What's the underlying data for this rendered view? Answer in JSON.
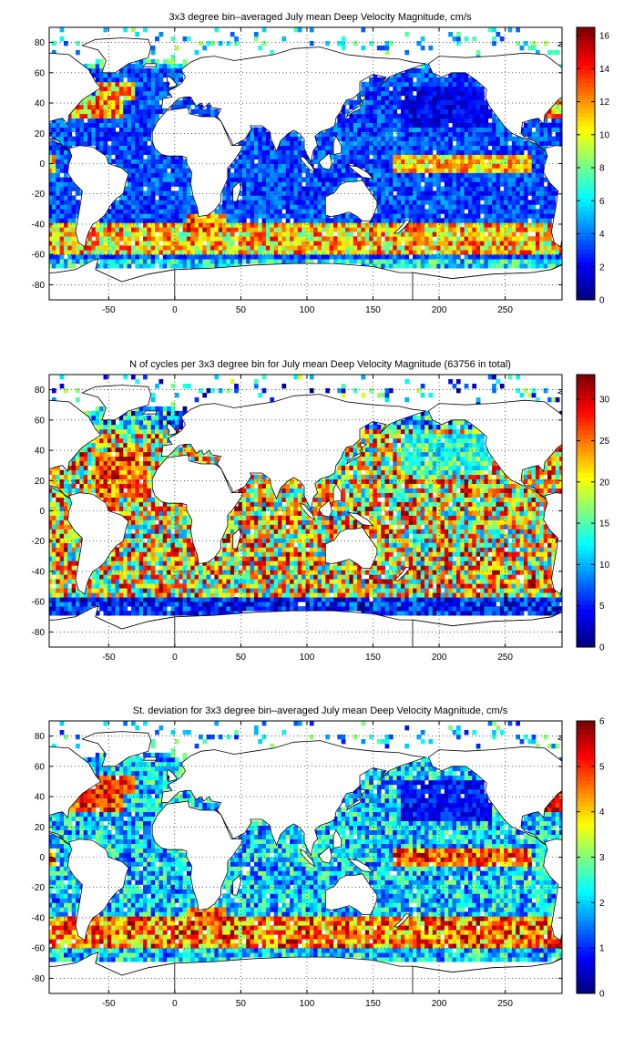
{
  "chart_data": [
    {
      "type": "heatmap",
      "title": "3x3 degree bin–averaged July mean Deep Velocity Magnitude, cm/s",
      "xlim": [
        -95,
        293
      ],
      "ylim": [
        -90,
        90
      ],
      "xticks": [
        "-50",
        "0",
        "50",
        "100",
        "150",
        "200",
        "250"
      ],
      "xtick_values": [
        -50,
        0,
        50,
        100,
        150,
        200,
        250
      ],
      "yticks": [
        "80",
        "60",
        "40",
        "20",
        "0",
        "-20",
        "-40",
        "-60",
        "-80"
      ],
      "ytick_values": [
        80,
        60,
        40,
        20,
        0,
        -20,
        -40,
        -60,
        -80
      ],
      "colorbar_ticks": [
        "16",
        "14",
        "12",
        "10",
        "8",
        "6",
        "4",
        "2",
        "0"
      ],
      "colorbar_tick_values": [
        16,
        14,
        12,
        10,
        8,
        6,
        4,
        2,
        0
      ],
      "color_range": [
        0,
        16.5
      ],
      "colormap": "jet",
      "grid": true,
      "field": "speed",
      "bin_size_deg": 3
    },
    {
      "type": "heatmap",
      "title": "N of cycles per 3x3 degree bin for July mean Deep Velocity Magnitude (63756 in total)",
      "xlim": [
        -95,
        293
      ],
      "ylim": [
        -90,
        90
      ],
      "xticks": [
        "-50",
        "0",
        "50",
        "100",
        "150",
        "200",
        "250"
      ],
      "xtick_values": [
        -50,
        0,
        50,
        100,
        150,
        200,
        250
      ],
      "yticks": [
        "80",
        "60",
        "40",
        "20",
        "0",
        "-20",
        "-40",
        "-60",
        "-80"
      ],
      "ytick_values": [
        80,
        60,
        40,
        20,
        0,
        -20,
        -40,
        -60,
        -80
      ],
      "colorbar_ticks": [
        "30",
        "25",
        "20",
        "15",
        "10",
        "5",
        "0"
      ],
      "colorbar_tick_values": [
        30,
        25,
        20,
        15,
        10,
        5,
        0
      ],
      "color_range": [
        0,
        33
      ],
      "colormap": "jet",
      "grid": true,
      "field": "count",
      "bin_size_deg": 3
    },
    {
      "type": "heatmap",
      "title": "St. deviation for 3x3 degree bin–averaged July mean Deep Velocity Magnitude, cm/s",
      "xlim": [
        -95,
        293
      ],
      "ylim": [
        -90,
        90
      ],
      "xticks": [
        "-50",
        "0",
        "50",
        "100",
        "150",
        "200",
        "250"
      ],
      "xtick_values": [
        -50,
        0,
        50,
        100,
        150,
        200,
        250
      ],
      "yticks": [
        "80",
        "60",
        "40",
        "20",
        "0",
        "-20",
        "-40",
        "-60",
        "-80"
      ],
      "ytick_values": [
        80,
        60,
        40,
        20,
        0,
        -20,
        -40,
        -60,
        -80
      ],
      "colorbar_ticks": [
        "6",
        "5",
        "4",
        "3",
        "2",
        "1",
        "0"
      ],
      "colorbar_tick_values": [
        6,
        5,
        4,
        3,
        2,
        1,
        0
      ],
      "color_range": [
        0,
        6
      ],
      "colormap": "jet",
      "grid": true,
      "field": "std",
      "bin_size_deg": 3
    }
  ]
}
